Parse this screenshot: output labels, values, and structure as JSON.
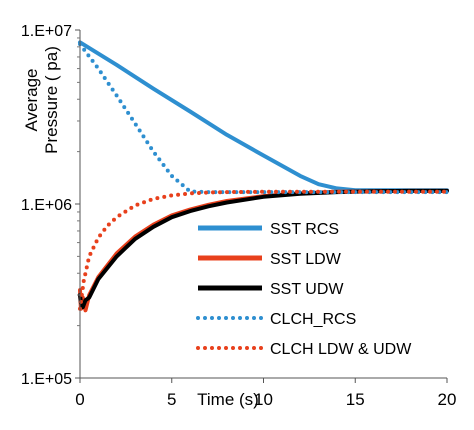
{
  "chart_data": {
    "type": "line",
    "title": "",
    "xlabel": "Time (s)",
    "ylabel": "Average Pressure ( pa)",
    "xlim": [
      0,
      20
    ],
    "ylim": [
      100000,
      10000000
    ],
    "yscale": "log",
    "grid": false,
    "legend_position": "center-right",
    "x_ticks": [
      {
        "value": 0,
        "label": "0"
      },
      {
        "value": 5,
        "label": "5"
      },
      {
        "value": 10,
        "label": "10"
      },
      {
        "value": 15,
        "label": "15"
      },
      {
        "value": 20,
        "label": "20"
      }
    ],
    "y_ticks": [
      {
        "value": 100000,
        "label": "1.E+05"
      },
      {
        "value": 1000000,
        "label": "1.E+06"
      },
      {
        "value": 10000000,
        "label": "1.E+07"
      }
    ],
    "series": [
      {
        "name": "SST RCS",
        "color": "#2E8FD0",
        "style": "solid",
        "x": [
          0,
          2,
          4,
          6,
          8,
          10,
          12,
          13,
          14,
          15,
          16,
          18,
          20
        ],
        "y": [
          8500000,
          6300000,
          4600000,
          3400000,
          2500000,
          1900000,
          1450000,
          1300000,
          1230000,
          1200000,
          1200000,
          1200000,
          1200000
        ]
      },
      {
        "name": "SST LDW",
        "color": "#E8401C",
        "style": "solid",
        "x": [
          0,
          0.05,
          0.15,
          0.3,
          0.5,
          1,
          2,
          3,
          4,
          5,
          6,
          7,
          8,
          10,
          12,
          14,
          16,
          18,
          20
        ],
        "y": [
          320000,
          250000,
          290000,
          245000,
          300000,
          380000,
          520000,
          650000,
          760000,
          860000,
          930000,
          990000,
          1040000,
          1110000,
          1150000,
          1175000,
          1185000,
          1190000,
          1190000
        ]
      },
      {
        "name": "SST UDW",
        "color": "#000000",
        "style": "solid",
        "x": [
          0,
          0.05,
          0.15,
          0.3,
          0.5,
          1,
          2,
          3,
          4,
          5,
          6,
          7,
          8,
          10,
          12,
          14,
          16,
          18,
          20
        ],
        "y": [
          300000,
          270000,
          255000,
          280000,
          290000,
          370000,
          500000,
          630000,
          740000,
          840000,
          910000,
          970000,
          1020000,
          1100000,
          1145000,
          1170000,
          1185000,
          1190000,
          1190000
        ]
      },
      {
        "name": "CLCH_RCS",
        "color": "#2E8FD0",
        "style": "dotted",
        "x": [
          0,
          1,
          2,
          3,
          4,
          5,
          6,
          7,
          8,
          10,
          12,
          14,
          16,
          18,
          20
        ],
        "y": [
          8300000,
          6000000,
          4200000,
          2900000,
          2000000,
          1450000,
          1180000,
          1170000,
          1170000,
          1170000,
          1170000,
          1170000,
          1170000,
          1170000,
          1170000
        ]
      },
      {
        "name": "CLCH LDW & UDW",
        "color": "#E8401C",
        "style": "dotted",
        "x": [
          0,
          0.2,
          0.5,
          1,
          1.5,
          2,
          3,
          4,
          5,
          6,
          7,
          8,
          10,
          12,
          14,
          16,
          18,
          20
        ],
        "y": [
          250000,
          360000,
          500000,
          640000,
          750000,
          840000,
          980000,
          1070000,
          1120000,
          1150000,
          1165000,
          1170000,
          1175000,
          1175000,
          1175000,
          1175000,
          1175000,
          1175000
        ]
      }
    ]
  }
}
